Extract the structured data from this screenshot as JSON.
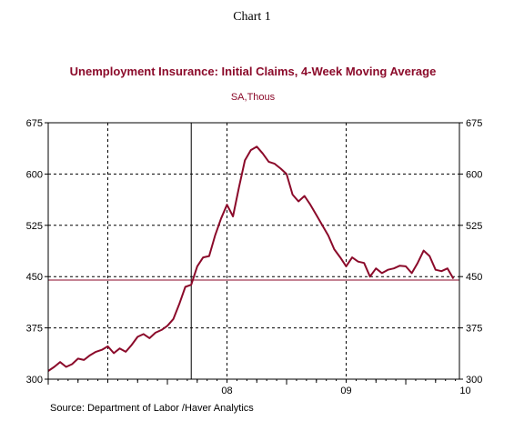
{
  "chart_number": "Chart 1",
  "chart_data": {
    "type": "line",
    "title": "Unemployment Insurance: Initial Claims, 4-Week Moving Average",
    "subtitle": "SA,Thous",
    "source": "Source:  Department of Labor /Haver Analytics",
    "xlabel": "",
    "ylabel": "",
    "x_start": 2007.0,
    "x_end": 2010.45,
    "ylim": [
      300,
      675
    ],
    "yticks": [
      300,
      375,
      450,
      525,
      600,
      675
    ],
    "ytick_labels": [
      "300",
      "375",
      "450",
      "525",
      "600",
      "675"
    ],
    "x_year_labels": [
      {
        "x": 2008.0,
        "label": "08"
      },
      {
        "x": 2009.0,
        "label": "09"
      },
      {
        "x": 2010.0,
        "label": "10"
      }
    ],
    "vertical_gridlines_dashed": [
      2007.5,
      2008.5,
      2009.5
    ],
    "recession_marker_x": 2008.2,
    "reference_line_value": 445,
    "grid": true,
    "colors": {
      "series": "#8b0a2a",
      "title": "#8b0a2a",
      "reference": "#8b0a2a"
    },
    "series": [
      {
        "x": [
          2007.0,
          2007.05,
          2007.1,
          2007.15,
          2007.2,
          2007.25,
          2007.3,
          2007.35,
          2007.4,
          2007.45,
          2007.5,
          2007.55,
          2007.6,
          2007.65,
          2007.7,
          2007.75,
          2007.8,
          2007.85,
          2007.9,
          2007.95,
          2008.0,
          2008.05,
          2008.1,
          2008.15,
          2008.2,
          2008.25,
          2008.3,
          2008.35,
          2008.4,
          2008.45,
          2008.5,
          2008.55,
          2008.6,
          2008.65,
          2008.7,
          2008.75,
          2008.8,
          2008.85,
          2008.9,
          2008.95,
          2009.0,
          2009.05,
          2009.1,
          2009.15,
          2009.2,
          2009.25,
          2009.3,
          2009.35,
          2009.4,
          2009.45,
          2009.5,
          2009.55,
          2009.6,
          2009.65,
          2009.7,
          2009.75,
          2009.8,
          2009.85,
          2009.9,
          2009.95,
          2010.0,
          2010.05,
          2010.1,
          2010.15,
          2010.2,
          2010.25,
          2010.3,
          2010.35,
          2010.4
        ],
        "values": [
          312,
          318,
          325,
          318,
          322,
          330,
          328,
          335,
          340,
          343,
          348,
          338,
          345,
          340,
          350,
          362,
          366,
          360,
          368,
          372,
          378,
          388,
          410,
          435,
          438,
          465,
          478,
          480,
          510,
          535,
          555,
          538,
          580,
          620,
          635,
          640,
          630,
          618,
          615,
          608,
          600,
          570,
          560,
          568,
          555,
          540,
          525,
          510,
          490,
          478,
          465,
          478,
          472,
          470,
          450,
          462,
          455,
          460,
          462,
          466,
          465,
          455,
          470,
          488,
          480,
          460,
          458,
          462,
          447
        ]
      }
    ]
  }
}
